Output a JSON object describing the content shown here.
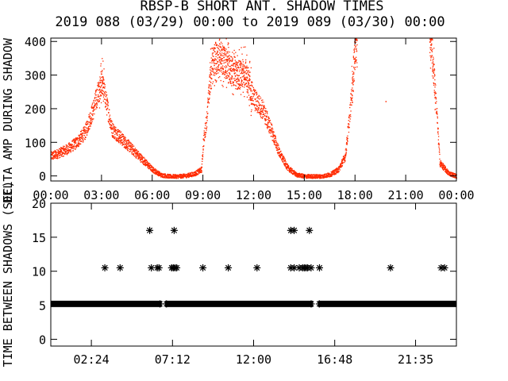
{
  "figure": {
    "title": "RBSP-B SHORT ANT. SHADOW TIMES",
    "subtitle": "2019 088 (03/29) 00:00 to 2019 089 (03/30) 00:00"
  },
  "chart_data": [
    {
      "type": "scatter",
      "ylabel": "DELTA AMP DURING SHADOW",
      "ylim": [
        -15,
        410
      ],
      "xlim": [
        0,
        24
      ],
      "x_ticks": [
        0,
        3,
        6,
        9,
        12,
        15,
        18,
        21,
        24
      ],
      "x_tick_labels": [
        "00:00",
        "03:00",
        "06:00",
        "09:00",
        "12:00",
        "15:00",
        "18:00",
        "21:00",
        "00:00"
      ],
      "y_ticks": [
        0,
        100,
        200,
        300,
        400
      ],
      "y_tick_labels": [
        "0",
        "100",
        "200",
        "300",
        "400"
      ],
      "colors": {
        "points": "#ff2a00"
      },
      "series": [
        {
          "profile": [
            [
              0.0,
              60
            ],
            [
              0.5,
              70
            ],
            [
              1.0,
              82
            ],
            [
              1.5,
              100
            ],
            [
              2.0,
              130
            ],
            [
              2.5,
              200
            ],
            [
              2.8,
              255
            ],
            [
              3.0,
              280
            ],
            [
              3.3,
              210
            ],
            [
              3.6,
              140
            ],
            [
              4.0,
              120
            ],
            [
              4.5,
              95
            ],
            [
              5.0,
              70
            ],
            [
              5.5,
              45
            ],
            [
              6.0,
              20
            ],
            [
              6.5,
              4
            ],
            [
              7.0,
              0
            ],
            [
              7.5,
              0
            ],
            [
              8.0,
              2
            ],
            [
              8.5,
              8
            ],
            [
              8.9,
              20
            ],
            [
              9.0,
              100
            ],
            [
              9.2,
              170
            ],
            [
              9.5,
              340
            ],
            [
              10.0,
              360
            ],
            [
              10.5,
              320
            ],
            [
              11.0,
              300
            ],
            [
              11.5,
              310
            ],
            [
              12.0,
              230
            ],
            [
              12.5,
              200
            ],
            [
              13.0,
              140
            ],
            [
              13.5,
              70
            ],
            [
              14.0,
              25
            ],
            [
              14.5,
              5
            ],
            [
              15.0,
              0
            ],
            [
              16.0,
              0
            ],
            [
              16.5,
              5
            ],
            [
              17.0,
              20
            ],
            [
              17.4,
              60
            ],
            [
              17.7,
              200
            ],
            [
              18.0,
              390
            ],
            [
              22.5,
              400
            ],
            [
              22.8,
              200
            ],
            [
              23.0,
              40
            ],
            [
              23.5,
              10
            ],
            [
              24.0,
              0
            ]
          ],
          "gaps": [
            [
              18.1,
              22.4
            ]
          ],
          "isolated_points": [
            [
              19.8,
              223
            ]
          ]
        }
      ]
    },
    {
      "type": "scatter",
      "ylabel": "TIME BETWEEN SHADOWS (SEC)",
      "ylim": [
        -1,
        20
      ],
      "xlim": [
        0,
        24
      ],
      "x_ticks": [
        2.4,
        7.2,
        12.0,
        16.8,
        21.5833
      ],
      "x_tick_labels": [
        "02:24",
        "07:12",
        "12:00",
        "16:48",
        "21:35"
      ],
      "y_ticks": [
        0,
        5,
        10,
        15,
        20
      ],
      "y_tick_labels": [
        "0",
        "5",
        "10",
        "15",
        "20"
      ],
      "colors": {
        "points": "#000000"
      },
      "series": [
        {
          "baseline_value": 5.2,
          "baseline_gaps": [
            [
              6.55,
              6.75
            ],
            [
              15.5,
              15.8
            ]
          ],
          "points": [
            [
              3.2,
              10.5
            ],
            [
              4.1,
              10.5
            ],
            [
              5.85,
              16
            ],
            [
              5.95,
              10.5
            ],
            [
              6.3,
              10.5
            ],
            [
              6.4,
              10.5
            ],
            [
              7.15,
              10.5
            ],
            [
              7.25,
              10.5
            ],
            [
              7.35,
              10.5
            ],
            [
              7.45,
              10.5
            ],
            [
              7.3,
              16
            ],
            [
              9.0,
              10.5
            ],
            [
              10.5,
              10.5
            ],
            [
              12.2,
              10.5
            ],
            [
              14.2,
              16
            ],
            [
              14.4,
              16
            ],
            [
              14.2,
              10.5
            ],
            [
              14.4,
              10.5
            ],
            [
              14.7,
              10.5
            ],
            [
              14.9,
              10.5
            ],
            [
              15.0,
              10.5
            ],
            [
              15.1,
              10.5
            ],
            [
              15.2,
              10.5
            ],
            [
              15.3,
              16
            ],
            [
              15.4,
              10.5
            ],
            [
              15.9,
              10.5
            ],
            [
              20.1,
              10.5
            ],
            [
              23.1,
              10.5
            ],
            [
              23.3,
              10.5
            ]
          ]
        }
      ]
    }
  ]
}
